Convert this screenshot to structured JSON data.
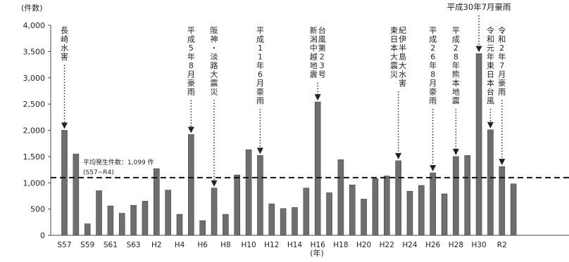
{
  "chart_data": {
    "type": "bar",
    "y_unit_label": "(件数)",
    "x_unit_label": "(年)",
    "ylim": [
      0,
      4000
    ],
    "yticks": [
      "0",
      "500",
      "1,000",
      "1,500",
      "2,000",
      "2,500",
      "3,000",
      "3,500",
      "4,000"
    ],
    "ytick_values": [
      0,
      500,
      1000,
      1500,
      2000,
      2500,
      3000,
      3500,
      4000
    ],
    "grid": false,
    "bar_color": "#6e6e6e",
    "categories": [
      "S57",
      "S58",
      "S59",
      "S60",
      "S61",
      "S62",
      "S63",
      "H1",
      "H2",
      "H3",
      "H4",
      "H5",
      "H6",
      "H7",
      "H8",
      "H9",
      "H10",
      "H11",
      "H12",
      "H13",
      "H14",
      "H15",
      "H16",
      "H17",
      "H18",
      "H19",
      "H20",
      "H21",
      "H22",
      "H23",
      "H24",
      "H25",
      "H26",
      "H27",
      "H28",
      "H29",
      "H30",
      "R1",
      "R2",
      "R3"
    ],
    "x_tick_labels": [
      "S57",
      "",
      "S59",
      "",
      "S61",
      "",
      "S63",
      "",
      "H2",
      "",
      "H4",
      "",
      "H6",
      "",
      "H8",
      "",
      "H10",
      "",
      "H12",
      "",
      "H14",
      "",
      "H16",
      "",
      "H18",
      "",
      "H20",
      "",
      "H22",
      "",
      "H24",
      "",
      "H26",
      "",
      "H28",
      "",
      "H30",
      "",
      "R2",
      ""
    ],
    "values": [
      2000,
      1550,
      220,
      850,
      560,
      420,
      570,
      650,
      1270,
      860,
      400,
      1920,
      280,
      900,
      400,
      1150,
      1630,
      1520,
      600,
      510,
      530,
      900,
      2540,
      810,
      1440,
      960,
      690,
      1080,
      1130,
      1420,
      840,
      950,
      1190,
      790,
      1500,
      1520,
      3460,
      2010,
      1310,
      980
    ],
    "average": {
      "value": 1099,
      "label": "平均発生件数：1,099 件",
      "sublabel": "(S57~R4)"
    },
    "annotations": [
      {
        "category": "S57",
        "text": "長崎水害",
        "vertical": true
      },
      {
        "category": "H5",
        "text": "平成5年8月豪雨",
        "vertical": true
      },
      {
        "category": "H7",
        "text": "阪神・淡路大震災",
        "vertical": true
      },
      {
        "category": "H11",
        "text": "平成11年6月豪雨",
        "vertical": true
      },
      {
        "category": "H16",
        "text": "新潟中越地震 台風第23号",
        "vertical": true
      },
      {
        "category": "H23",
        "text": "東日本大震災 紀伊半島大水害",
        "vertical": true
      },
      {
        "category": "H26",
        "text": "平成26年8月豪雨",
        "vertical": true
      },
      {
        "category": "H28",
        "text": "平成28年熊本地震",
        "vertical": true
      },
      {
        "category": "H30",
        "text": "平成30年7月豪雨",
        "vertical": false
      },
      {
        "category": "R1",
        "text": "令和元年東日本台風",
        "vertical": true
      },
      {
        "category": "R2",
        "text": "令和2年7月豪雨",
        "vertical": true
      }
    ]
  }
}
